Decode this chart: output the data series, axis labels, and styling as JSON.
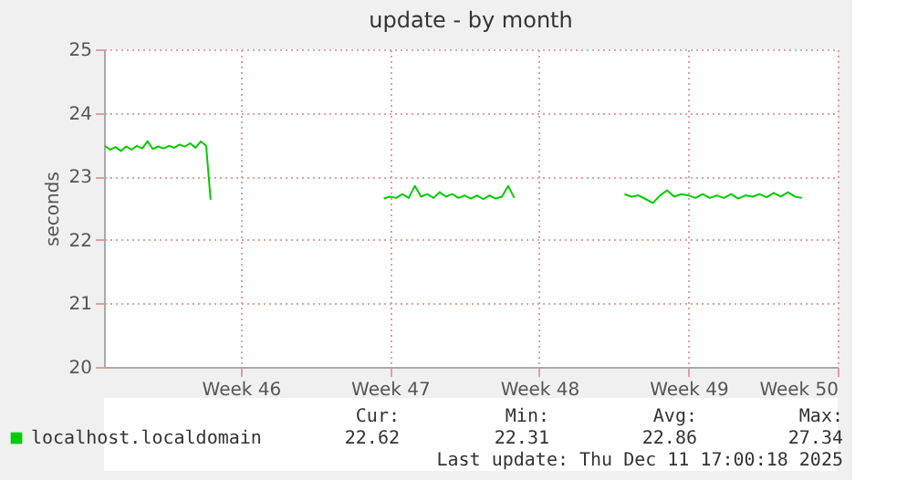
{
  "chart_data": {
    "type": "line",
    "title": "update - by month",
    "ylabel": "seconds",
    "xlim": [
      "2025-11-03T14:00",
      "2025-12-08T00:00"
    ],
    "xticks": [
      {
        "value": "2025-11-10",
        "label": "Week 46"
      },
      {
        "value": "2025-11-17",
        "label": "Week 47"
      },
      {
        "value": "2025-11-24",
        "label": "Week 48"
      },
      {
        "value": "2025-12-01",
        "label": "Week 49"
      },
      {
        "value": "2025-12-08",
        "label": "Week 50"
      }
    ],
    "ylim": [
      20,
      25
    ],
    "yticks": [
      20,
      21,
      22,
      23,
      24,
      25
    ],
    "grid": true,
    "legend": "bottom",
    "marker": "none",
    "line_style": "solid",
    "x": [
      "2025-11-03T15:00",
      "2025-11-03T21:00",
      "2025-11-04T03:00",
      "2025-11-04T09:00",
      "2025-11-04T15:00",
      "2025-11-04T21:00",
      "2025-11-05T03:00",
      "2025-11-05T09:00",
      "2025-11-05T15:00",
      "2025-11-05T21:00",
      "2025-11-06T03:00",
      "2025-11-06T09:00",
      "2025-11-06T15:00",
      "2025-11-06T21:00",
      "2025-11-07T03:00",
      "2025-11-07T09:00",
      "2025-11-07T15:00",
      "2025-11-07T21:00",
      "2025-11-08T03:00",
      "2025-11-08T09:00",
      "2025-11-08T14:00",
      "2025-11-11T00:00",
      "2025-11-16T17:00",
      "2025-11-17T00:00",
      "2025-11-17T07:00",
      "2025-11-17T14:00",
      "2025-11-17T21:00",
      "2025-11-18T04:00",
      "2025-11-18T11:00",
      "2025-11-18T18:00",
      "2025-11-19T01:00",
      "2025-11-19T08:00",
      "2025-11-19T15:00",
      "2025-11-19T22:00",
      "2025-11-20T05:00",
      "2025-11-20T12:00",
      "2025-11-20T19:00",
      "2025-11-21T02:00",
      "2025-11-21T09:00",
      "2025-11-21T16:00",
      "2025-11-21T23:00",
      "2025-11-22T06:00",
      "2025-11-22T13:00",
      "2025-11-22T20:00",
      "2025-11-26T00:00",
      "2025-11-28T00:00",
      "2025-11-28T08:00",
      "2025-11-28T16:00",
      "2025-11-29T00:00",
      "2025-11-29T08:00",
      "2025-11-29T16:00",
      "2025-11-30T00:00",
      "2025-11-30T08:00",
      "2025-11-30T16:00",
      "2025-12-01T00:00",
      "2025-12-01T08:00",
      "2025-12-01T16:00",
      "2025-12-02T00:00",
      "2025-12-02T08:00",
      "2025-12-02T16:00",
      "2025-12-03T00:00",
      "2025-12-03T08:00",
      "2025-12-03T16:00",
      "2025-12-04T00:00",
      "2025-12-04T08:00",
      "2025-12-04T16:00",
      "2025-12-05T00:00",
      "2025-12-05T08:00",
      "2025-12-05T16:00",
      "2025-12-06T00:00",
      "2025-12-06T08:00"
    ],
    "series": [
      {
        "name": "localhost.localdomain",
        "color": "#00cc00",
        "values": [
          23.48,
          23.42,
          23.46,
          23.4,
          23.47,
          23.42,
          23.48,
          23.44,
          23.55,
          23.43,
          23.47,
          23.44,
          23.48,
          23.45,
          23.5,
          23.47,
          23.52,
          23.45,
          23.55,
          23.48,
          22.63,
          null,
          22.65,
          22.68,
          22.66,
          22.72,
          22.66,
          22.85,
          22.68,
          22.72,
          22.66,
          22.75,
          22.68,
          22.72,
          22.66,
          22.7,
          22.65,
          22.7,
          22.64,
          22.7,
          22.65,
          22.68,
          22.85,
          22.66,
          null,
          22.72,
          22.68,
          22.7,
          22.64,
          22.58,
          22.7,
          22.78,
          22.68,
          22.72,
          22.7,
          22.66,
          22.72,
          22.66,
          22.7,
          22.66,
          22.72,
          22.65,
          22.7,
          22.68,
          22.72,
          22.67,
          22.74,
          22.68,
          22.75,
          22.68,
          22.66
        ]
      }
    ],
    "annotations": [
      "Cur:",
      "Min:",
      "Avg:",
      "Max:",
      "22.62",
      "22.31",
      "22.86",
      "27.34",
      "Last update: Thu Dec 11 17:00:18 2025"
    ]
  }
}
